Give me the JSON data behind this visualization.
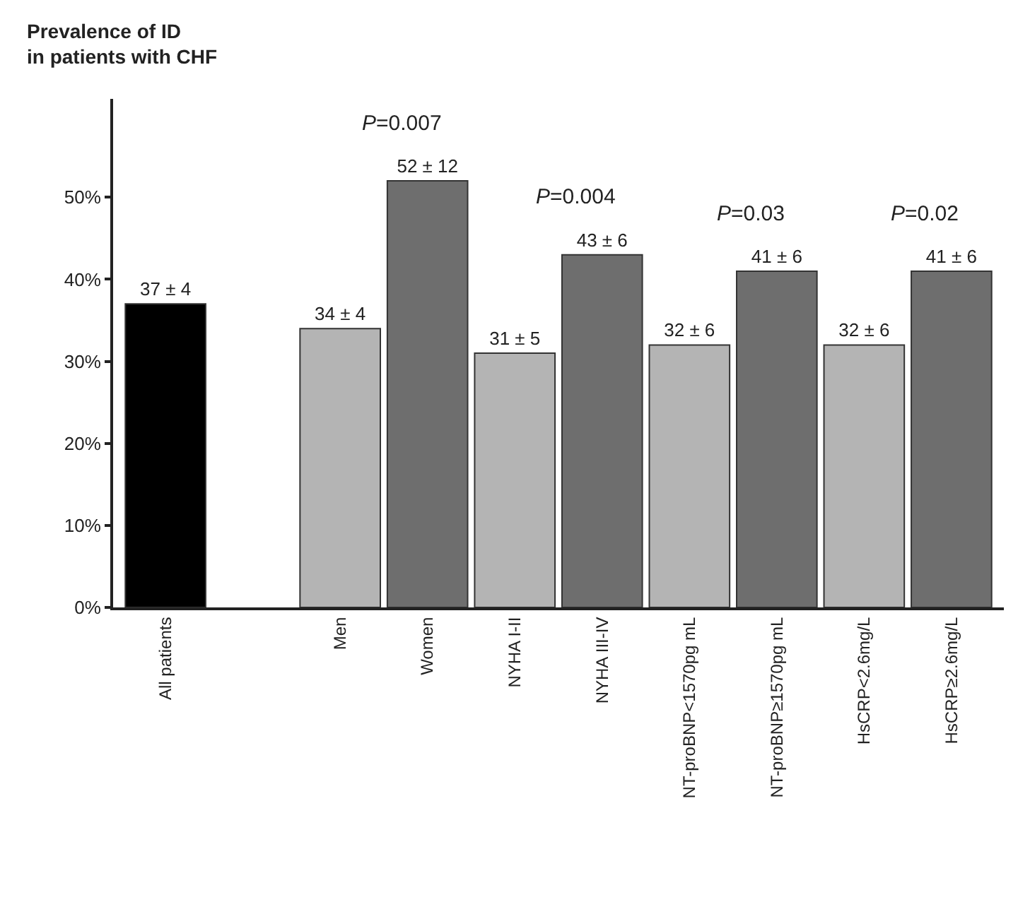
{
  "chart_data": {
    "type": "bar",
    "ylabel": "Prevalence of ID\nin patients with CHF",
    "categories": [
      "All patients",
      null,
      "Men",
      "Women",
      "NYHA I-II",
      "NYHA III-IV",
      "NT-proBNP<1570pg mL",
      "NT-proBNP≥1570pg mL",
      "HsCRP<2.6mg/L",
      "HsCRP≥2.6mg/L"
    ],
    "values": [
      37,
      null,
      34,
      52,
      31,
      43,
      32,
      41,
      32,
      41
    ],
    "colors": [
      "#000000",
      "#b4b4b4",
      "#b4b4b4",
      "#6e6e6e",
      "#b4b4b4",
      "#6e6e6e",
      "#b4b4b4",
      "#6e6e6e",
      "#b4b4b4",
      "#6e6e6e"
    ],
    "value_labels": [
      "37 ± 4",
      null,
      "34 ± 4",
      "52 ± 12",
      "31 ± 5",
      "43 ± 6",
      "32 ± 6",
      "41 ± 6",
      "32 ± 6",
      "41 ± 6"
    ],
    "ylim": [
      0,
      62
    ],
    "yticks": [
      {
        "value": 0,
        "label": "0%"
      },
      {
        "value": 10,
        "label": "10%"
      },
      {
        "value": 20,
        "label": "20%"
      },
      {
        "value": 30,
        "label": "30%"
      },
      {
        "value": 40,
        "label": "40%"
      },
      {
        "value": 50,
        "label": "50%"
      }
    ],
    "grid": false,
    "annotations": [
      "P=0.007",
      "P=0.004",
      "P=0.03",
      "P=0.02"
    ]
  }
}
